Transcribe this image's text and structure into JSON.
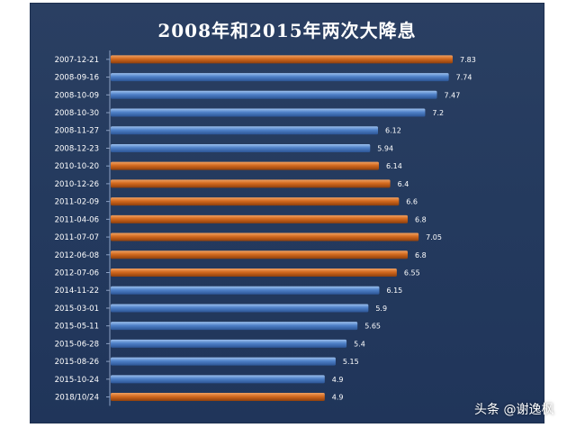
{
  "chart_data": {
    "type": "bar",
    "orientation": "horizontal",
    "title": "2008年和2015年两次大降息",
    "categories": [
      "2007-12-21",
      "2008-09-16",
      "2008-10-09",
      "2008-10-30",
      "2008-11-27",
      "2008-12-23",
      "2010-10-20",
      "2010-12-26",
      "2011-02-09",
      "2011-04-06",
      "2011-07-07",
      "2012-06-08",
      "2012-07-06",
      "2014-11-22",
      "2015-03-01",
      "2015-05-11",
      "2015-06-28",
      "2015-08-26",
      "2015-10-24",
      "2018/10/24"
    ],
    "values": [
      7.83,
      7.74,
      7.47,
      7.2,
      6.12,
      5.94,
      6.14,
      6.4,
      6.6,
      6.8,
      7.05,
      6.8,
      6.55,
      6.15,
      5.9,
      5.65,
      5.4,
      5.15,
      4.9,
      4.9
    ],
    "value_labels": [
      "7.83",
      "7.74",
      "7.47",
      "7.2",
      "6.12",
      "5.94",
      "6.14",
      "6.4",
      "6.6",
      "6.8",
      "7.05",
      "6.8",
      "6.55",
      "6.15",
      "5.9",
      "5.65",
      "5.4",
      "5.15",
      "4.9",
      "4.9"
    ],
    "bar_colors": [
      "orange",
      "blue",
      "blue",
      "blue",
      "blue",
      "blue",
      "orange",
      "orange",
      "orange",
      "orange",
      "orange",
      "orange",
      "orange",
      "blue",
      "blue",
      "blue",
      "blue",
      "blue",
      "blue",
      "orange"
    ],
    "xlim": [
      0,
      7.83
    ],
    "grid": false,
    "legend": "none"
  },
  "colors": {
    "orange": "#d2691e",
    "blue": "#4f81c8",
    "background": "#263c60",
    "text": "#ffffff"
  },
  "watermark": "头条 @谢逸枫"
}
